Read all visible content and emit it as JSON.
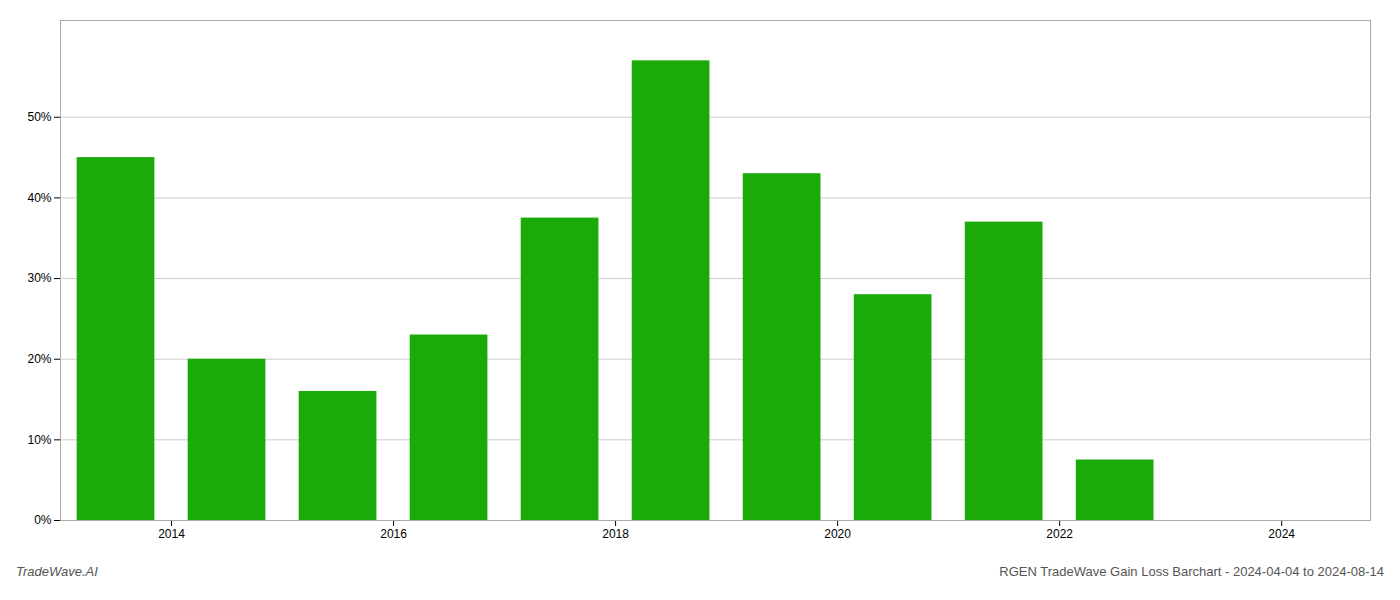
{
  "chart_data": {
    "type": "bar",
    "x": [
      2013.5,
      2014.5,
      2015.5,
      2016.5,
      2017.5,
      2018.5,
      2019.5,
      2020.5,
      2021.5,
      2022.5
    ],
    "values": [
      0.45,
      0.2,
      0.16,
      0.23,
      0.375,
      0.57,
      0.43,
      0.28,
      0.37,
      0.075
    ],
    "color": "#1aab0a",
    "xlim": [
      2013.0,
      2024.8
    ],
    "xticks": [
      2014,
      2016,
      2018,
      2020,
      2022,
      2024
    ],
    "ylim": [
      0,
      0.62
    ],
    "yticks": [
      {
        "value": 0.0,
        "label": "0%"
      },
      {
        "value": 0.1,
        "label": "10%"
      },
      {
        "value": 0.2,
        "label": "20%"
      },
      {
        "value": 0.3,
        "label": "30%"
      },
      {
        "value": 0.4,
        "label": "40%"
      },
      {
        "value": 0.5,
        "label": "50%"
      }
    ],
    "grid": true,
    "annotations": [
      "TradeWave.AI",
      "RGEN TradeWave Gain Loss Barchart - 2024-04-04 to 2024-08-14"
    ]
  }
}
